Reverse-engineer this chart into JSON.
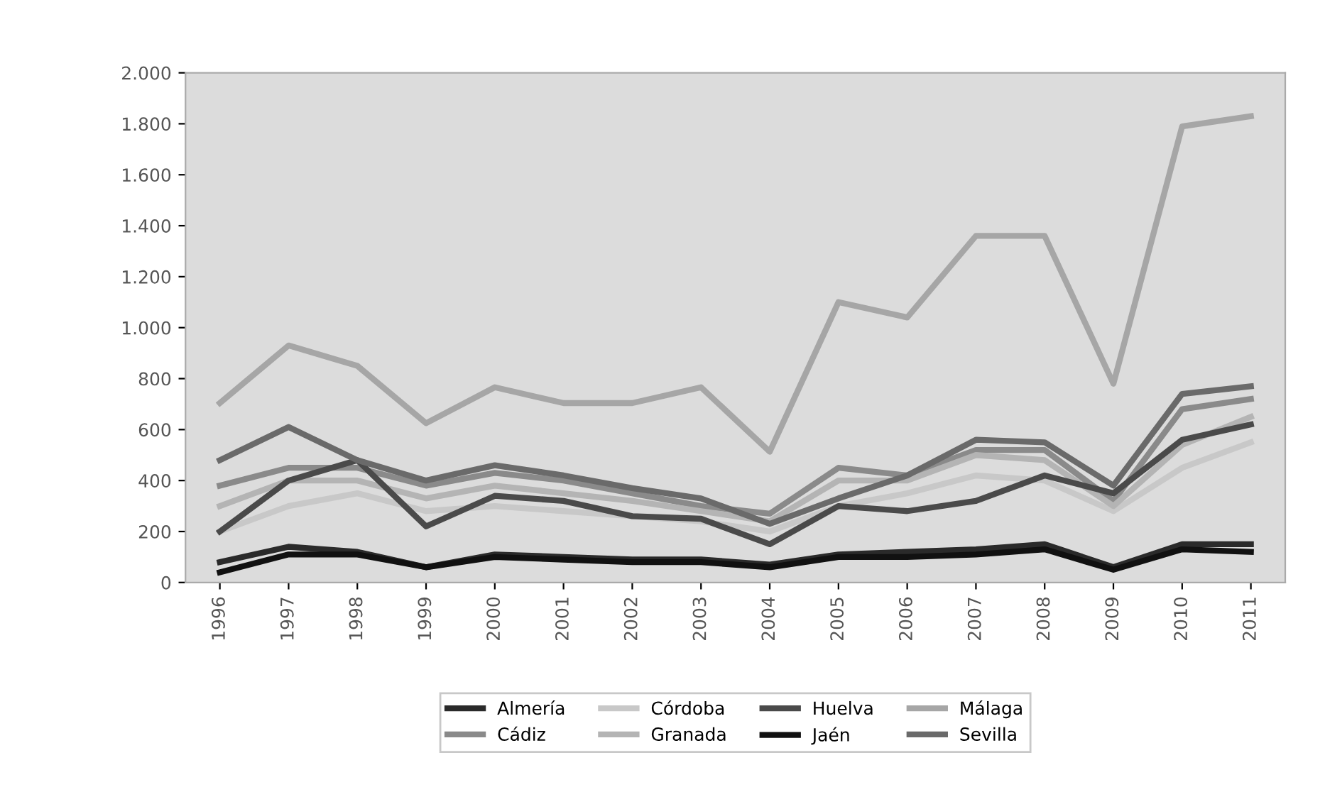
{
  "chart_data": {
    "type": "line",
    "categories": [
      "1996",
      "1997",
      "1998",
      "1999",
      "2000",
      "2001",
      "2002",
      "2003",
      "2004",
      "2005",
      "2006",
      "2007",
      "2008",
      "2009",
      "2010",
      "2011"
    ],
    "series": [
      {
        "name": "Almería",
        "color": "#2a2a2a",
        "values": [
          80,
          140,
          120,
          60,
          110,
          100,
          90,
          90,
          70,
          110,
          120,
          130,
          150,
          60,
          150,
          150
        ]
      },
      {
        "name": "Cádiz",
        "color": "#8a8a8a",
        "values": [
          380,
          450,
          450,
          380,
          430,
          400,
          350,
          300,
          270,
          450,
          420,
          520,
          520,
          320,
          680,
          720
        ]
      },
      {
        "name": "Córdoba",
        "color": "#c8c8c8",
        "values": [
          200,
          300,
          350,
          280,
          300,
          280,
          260,
          240,
          200,
          300,
          350,
          420,
          400,
          280,
          450,
          550
        ]
      },
      {
        "name": "Granada",
        "color": "#b4b4b4",
        "values": [
          300,
          400,
          400,
          330,
          380,
          350,
          320,
          280,
          240,
          400,
          400,
          500,
          480,
          300,
          540,
          650
        ]
      },
      {
        "name": "Huelva",
        "color": "#4a4a4a",
        "values": [
          200,
          400,
          480,
          220,
          340,
          320,
          260,
          250,
          150,
          300,
          280,
          320,
          420,
          350,
          560,
          620
        ]
      },
      {
        "name": "Jaén",
        "color": "#111111",
        "values": [
          40,
          110,
          110,
          60,
          100,
          90,
          80,
          80,
          60,
          100,
          100,
          110,
          130,
          50,
          130,
          120
        ]
      },
      {
        "name": "Málaga",
        "color": "#a6a6a6",
        "values": [
          704,
          930,
          850,
          625,
          766,
          704,
          704,
          766,
          513,
          1100,
          1040,
          1360,
          1360,
          780,
          1790,
          1830
        ]
      },
      {
        "name": "Sevilla",
        "color": "#6a6a6a",
        "values": [
          480,
          610,
          480,
          400,
          460,
          420,
          370,
          330,
          230,
          330,
          420,
          560,
          550,
          380,
          740,
          770
        ]
      }
    ],
    "ylim": [
      0,
      2000
    ],
    "yticks": [
      0,
      {
        "value": 200,
        "label": "200"
      },
      {
        "value": 400,
        "label": "400"
      },
      {
        "value": 600,
        "label": "600"
      },
      {
        "value": 800,
        "label": "800"
      },
      {
        "value": 1000,
        "label": "1.000"
      },
      {
        "value": 1200,
        "label": "1.200"
      },
      {
        "value": 1400,
        "label": "1.400"
      },
      {
        "value": 1600,
        "label": "1.600"
      },
      {
        "value": 1800,
        "label": "1.800"
      },
      {
        "value": 2000,
        "label": "2.000"
      }
    ],
    "grid": false,
    "legend": "bottom",
    "marker": "none",
    "line_style": "solid"
  }
}
